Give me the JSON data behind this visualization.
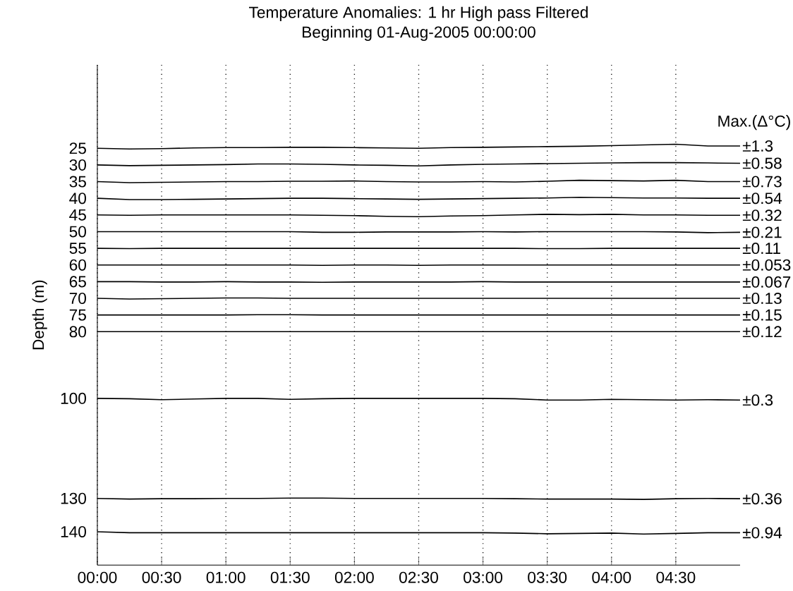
{
  "chart_data": {
    "type": "line",
    "title": "Temperature Anomalies: 1 hr High pass Filtered",
    "subtitle": "Beginning 01-Aug-2005 00:00:00",
    "ylabel": "Depth (m)",
    "annotations": [
      "Max.(Δ°C)"
    ],
    "x": [
      0,
      0.25,
      0.5,
      0.75,
      1,
      1.25,
      1.5,
      1.75,
      2,
      2.25,
      2.5,
      2.75,
      3,
      3.25,
      3.5,
      3.75,
      4,
      4.25,
      4.5,
      4.75,
      5
    ],
    "xlim": [
      0,
      5
    ],
    "xticks": [
      {
        "value": 0,
        "label": "00:00"
      },
      {
        "value": 0.5,
        "label": "00:30"
      },
      {
        "value": 1,
        "label": "01:00"
      },
      {
        "value": 1.5,
        "label": "01:30"
      },
      {
        "value": 2,
        "label": "02:00"
      },
      {
        "value": 2.5,
        "label": "02:30"
      },
      {
        "value": 3,
        "label": "03:00"
      },
      {
        "value": 3.5,
        "label": "03:30"
      },
      {
        "value": 4,
        "label": "04:00"
      },
      {
        "value": 4.5,
        "label": "04:30"
      }
    ],
    "ylim": [
      150,
      0
    ],
    "yticks": [
      25,
      30,
      35,
      40,
      45,
      50,
      55,
      60,
      65,
      70,
      75,
      80,
      100,
      130,
      140
    ],
    "grid": "x",
    "marker": "none",
    "line_style": "solid",
    "series": [
      {
        "name": "±1.3",
        "color": "#000000",
        "values": [
          25,
          25.2,
          25.1,
          24.9,
          24.8,
          24.8,
          24.7,
          24.7,
          24.8,
          24.9,
          25,
          24.8,
          24.7,
          24.6,
          24.5,
          24.4,
          24.2,
          24.0,
          23.8,
          24.3,
          24.3
        ]
      },
      {
        "name": "±0.58",
        "color": "#000000",
        "values": [
          30,
          30.2,
          30.1,
          30,
          29.9,
          29.7,
          29.7,
          29.8,
          30,
          30.1,
          30.3,
          30,
          29.8,
          29.7,
          29.6,
          29.5,
          29.4,
          29.3,
          29.3,
          29.4,
          29.5
        ]
      },
      {
        "name": "±0.73",
        "color": "#000000",
        "values": [
          35,
          35.3,
          35.2,
          35.1,
          35,
          35,
          34.9,
          34.9,
          34.8,
          35,
          35.1,
          35.1,
          35,
          35.1,
          34.9,
          34.6,
          34.7,
          34.8,
          34.6,
          35,
          35
        ]
      },
      {
        "name": "±0.54",
        "color": "#000000",
        "values": [
          40,
          40.4,
          40.4,
          40.3,
          40.2,
          40.1,
          40,
          40,
          40.1,
          40.2,
          40.3,
          40.2,
          40.1,
          40,
          39.9,
          39.7,
          39.8,
          39.9,
          39.9,
          40,
          40
        ]
      },
      {
        "name": "±0.32",
        "color": "#000000",
        "values": [
          45,
          45.1,
          45,
          45,
          45,
          45,
          45,
          45.1,
          45.2,
          45.4,
          45.5,
          45.3,
          45.2,
          45,
          44.8,
          44.9,
          44.8,
          45,
          45,
          45.1,
          45.1
        ]
      },
      {
        "name": "±0.21",
        "color": "#000000",
        "values": [
          50,
          50,
          50,
          50,
          50,
          50,
          50,
          50.2,
          50.2,
          50.1,
          50.1,
          50.1,
          50,
          50.1,
          50,
          50,
          50,
          50,
          50.1,
          50.3,
          50.2
        ]
      },
      {
        "name": "±0.11",
        "color": "#000000",
        "values": [
          55,
          55.1,
          55,
          55,
          55,
          55,
          55,
          55,
          55,
          55,
          55,
          55,
          55,
          55,
          55.1,
          55.1,
          55,
          55,
          55,
          55,
          55
        ]
      },
      {
        "name": "±0.053",
        "color": "#000000",
        "values": [
          60,
          60,
          60,
          60,
          60,
          60,
          60,
          60.1,
          60,
          60,
          60.1,
          60,
          60,
          60,
          60,
          60,
          60,
          60,
          60,
          60,
          60
        ]
      },
      {
        "name": "±0.067",
        "color": "#000000",
        "values": [
          65,
          65,
          65.1,
          65.1,
          65,
          65.1,
          65.1,
          65.2,
          65.1,
          65.1,
          65.1,
          65.1,
          65,
          65.1,
          65.1,
          65.1,
          65.1,
          65.1,
          65.1,
          65.1,
          65.1
        ]
      },
      {
        "name": "±0.13",
        "color": "#000000",
        "values": [
          70,
          70.2,
          70.1,
          70,
          69.9,
          69.9,
          70,
          70,
          70,
          70,
          70,
          70,
          70,
          70,
          70,
          70,
          70,
          70,
          70,
          70,
          70
        ]
      },
      {
        "name": "±0.15",
        "color": "#000000",
        "values": [
          75,
          75,
          75,
          75,
          75,
          74.9,
          74.9,
          75,
          75,
          75,
          75,
          75,
          75,
          75,
          75,
          75,
          75,
          75,
          75,
          75,
          75
        ]
      },
      {
        "name": "±0.12",
        "color": "#000000",
        "values": [
          80,
          80,
          80,
          80,
          80,
          80,
          80,
          80,
          80,
          80,
          80,
          80,
          80,
          80,
          80,
          80,
          80,
          80,
          80,
          80,
          80
        ]
      },
      {
        "name": "±0.3",
        "color": "#000000",
        "values": [
          100,
          100.1,
          100.4,
          100.2,
          100,
          100,
          100.3,
          100.1,
          100,
          100,
          100,
          100,
          100,
          100.1,
          100.5,
          100.5,
          100.3,
          100.4,
          100.5,
          100.4,
          100.5
        ]
      },
      {
        "name": "±0.36",
        "color": "#000000",
        "values": [
          130,
          130.2,
          130.1,
          130.1,
          130,
          130,
          129.9,
          129.9,
          130,
          130,
          130,
          130,
          130,
          130.1,
          130.2,
          130.2,
          130.2,
          130.3,
          130.1,
          130,
          130.1
        ]
      },
      {
        "name": "±0.94",
        "color": "#000000",
        "values": [
          140,
          140.3,
          140.3,
          140.3,
          140.3,
          140.3,
          140.3,
          140.3,
          140.3,
          140.3,
          140.3,
          140.3,
          140.3,
          140.4,
          140.6,
          140.5,
          140.4,
          140.7,
          140.5,
          140.3,
          140.3
        ]
      }
    ]
  }
}
